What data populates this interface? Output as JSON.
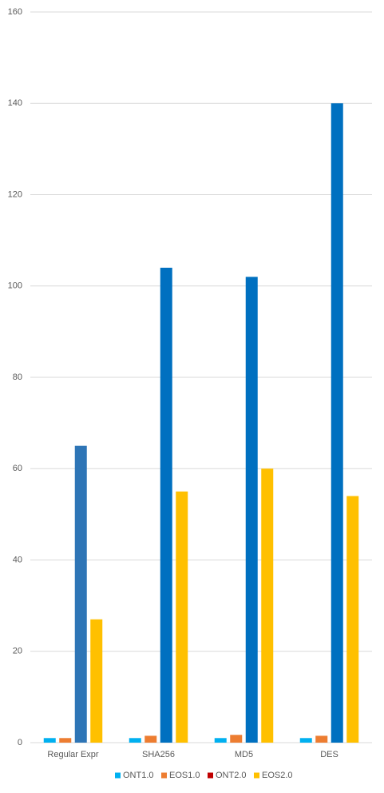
{
  "chart_data": {
    "type": "bar",
    "categories": [
      "Regular Expr",
      "SHA256",
      "MD5",
      "DES"
    ],
    "series": [
      {
        "name": "ONT1.0",
        "color": "#00b0f0",
        "values": [
          1,
          1,
          1,
          1
        ]
      },
      {
        "name": "EOS1.0",
        "color": "#ed7d31",
        "values": [
          1,
          1.5,
          1.7,
          1.5
        ]
      },
      {
        "name": "ONT2.0",
        "color": "#c00000",
        "bar_colors": [
          "#2e75b6",
          "#0070c0",
          "#0070c0",
          "#0070c0"
        ],
        "values": [
          65,
          104,
          102,
          140
        ]
      },
      {
        "name": "EOS2.0",
        "color": "#ffc000",
        "values": [
          27,
          55,
          60,
          54
        ]
      }
    ],
    "ylim": [
      0,
      160
    ],
    "yticks": [
      0,
      20,
      40,
      60,
      80,
      100,
      120,
      140,
      160
    ],
    "grid": true,
    "legend": "bottom"
  }
}
